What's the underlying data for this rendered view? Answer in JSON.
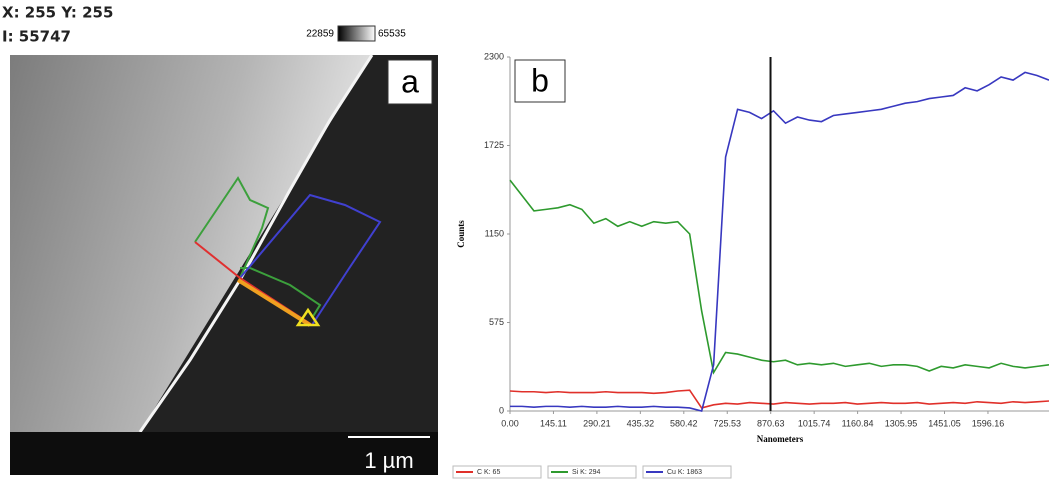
{
  "header": {
    "position": "X: 255 Y: 255",
    "intensity": "I: 55747",
    "colorbar_min": "22859",
    "colorbar_max": "65535"
  },
  "panel_a": {
    "label": "a",
    "scale_bar": "1 µm"
  },
  "chart_data": {
    "type": "line",
    "panel_label": "b",
    "x_label": "Nanometers",
    "y_label": "Counts",
    "x": [
      0,
      40,
      80,
      120,
      160,
      200,
      240,
      280,
      320,
      360,
      400,
      440,
      480,
      520,
      560,
      600,
      640,
      680,
      720,
      760,
      800,
      840,
      880,
      920,
      960,
      1000,
      1040,
      1080,
      1120,
      1160,
      1200,
      1240,
      1280,
      1320,
      1360,
      1400,
      1440,
      1480,
      1520,
      1560,
      1600,
      1640,
      1680,
      1720,
      1760,
      1800
    ],
    "series": [
      {
        "name": "C K: 65",
        "color": "#e0302a",
        "values": [
          130,
          125,
          125,
          120,
          125,
          120,
          120,
          120,
          125,
          120,
          120,
          120,
          115,
          120,
          130,
          135,
          20,
          40,
          50,
          45,
          55,
          50,
          45,
          55,
          50,
          45,
          50,
          50,
          55,
          45,
          50,
          55,
          50,
          50,
          55,
          45,
          50,
          55,
          50,
          60,
          55,
          50,
          60,
          55,
          60,
          65
        ]
      },
      {
        "name": "Si K: 294",
        "color": "#2e9a2e",
        "values": [
          1500,
          1400,
          1300,
          1310,
          1320,
          1340,
          1310,
          1220,
          1250,
          1200,
          1230,
          1200,
          1230,
          1220,
          1230,
          1150,
          650,
          250,
          380,
          370,
          350,
          330,
          320,
          330,
          300,
          310,
          300,
          310,
          290,
          300,
          310,
          290,
          300,
          300,
          290,
          260,
          290,
          280,
          300,
          290,
          280,
          310,
          290,
          280,
          290,
          300
        ]
      },
      {
        "name": "Cu K: 1863",
        "color": "#3838c0",
        "values": [
          30,
          30,
          25,
          30,
          30,
          25,
          30,
          25,
          25,
          30,
          25,
          25,
          30,
          25,
          25,
          20,
          0,
          300,
          1650,
          1960,
          1940,
          1900,
          1950,
          1870,
          1910,
          1890,
          1880,
          1920,
          1930,
          1940,
          1950,
          1960,
          1980,
          2000,
          2010,
          2030,
          2040,
          2050,
          2100,
          2080,
          2120,
          2170,
          2150,
          2200,
          2180,
          2150
        ]
      }
    ],
    "cursor_x": 870,
    "xlim": [
      0,
      1800
    ],
    "ylim": [
      0,
      2300
    ],
    "xticks": [
      {
        "value": 0,
        "label": "0.00"
      },
      145.11,
      290.21,
      435.32,
      580.42,
      725.53,
      870.63,
      1015.74,
      1160.84,
      1305.95,
      1451.05,
      1596.16
    ],
    "yticks": [
      0,
      575,
      1150,
      1725,
      2300
    ]
  }
}
